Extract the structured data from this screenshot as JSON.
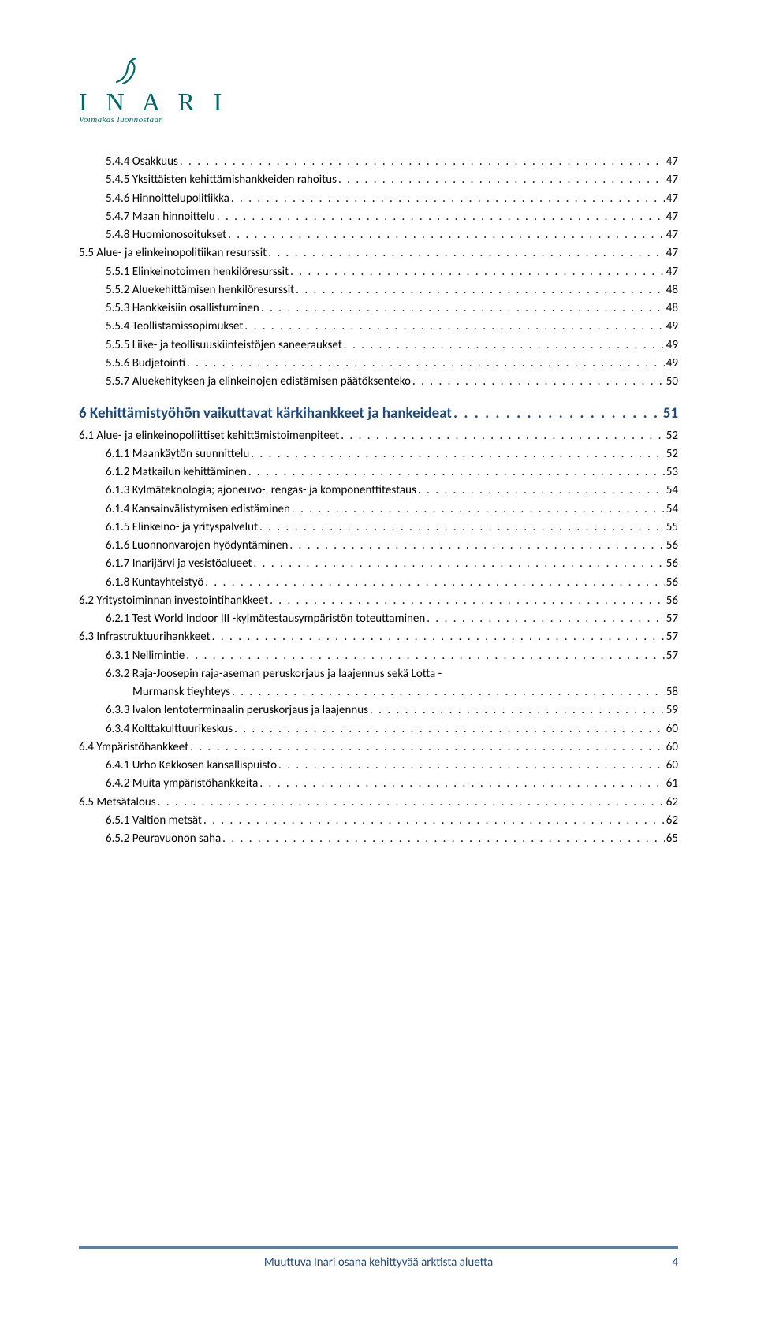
{
  "logo": {
    "word": "I N A R I",
    "tagline": "Voimakas luonnostaan",
    "color": "#006666"
  },
  "toc": [
    {
      "lvl": "lvl-3",
      "label": "5.4.4 Osakkuus",
      "page": "47"
    },
    {
      "lvl": "lvl-3",
      "label": "5.4.5 Yksittäisten kehittämishankkeiden rahoitus",
      "page": "47"
    },
    {
      "lvl": "lvl-3",
      "label": "5.4.6 Hinnoittelupolitiikka",
      "page": "47"
    },
    {
      "lvl": "lvl-3",
      "label": "5.4.7 Maan hinnoittelu",
      "page": "47"
    },
    {
      "lvl": "lvl-3",
      "label": "5.4.8 Huomionosoitukset",
      "page": "47"
    },
    {
      "lvl": "lvl-2",
      "label": "5.5 Alue- ja elinkeinopolitiikan resurssit",
      "page": "47"
    },
    {
      "lvl": "lvl-3",
      "label": "5.5.1 Elinkeinotoimen henkilöresurssit",
      "page": "47"
    },
    {
      "lvl": "lvl-3",
      "label": "5.5.2 Aluekehittämisen henkilöresurssit",
      "page": "48"
    },
    {
      "lvl": "lvl-3",
      "label": "5.5.3 Hankkeisiin osallistuminen",
      "page": "48"
    },
    {
      "lvl": "lvl-3",
      "label": "5.5.4 Teollistamissopimukset",
      "page": "49"
    },
    {
      "lvl": "lvl-3",
      "label": "5.5.5 Liike- ja teollisuuskiinteistöjen saneeraukset",
      "page": "49"
    },
    {
      "lvl": "lvl-3",
      "label": "5.5.6 Budjetointi",
      "page": "49"
    },
    {
      "lvl": "lvl-3",
      "label": "5.5.7 Aluekehityksen ja elinkeinojen edistämisen päätöksenteko",
      "page": "50"
    },
    {
      "lvl": "lvl-1",
      "label": "6 Kehittämistyöhön vaikuttavat kärkihankkeet ja hankeideat",
      "page": "51"
    },
    {
      "lvl": "lvl-2",
      "label": "6.1 Alue- ja elinkeinopoliittiset kehittämistoimenpiteet",
      "page": "52"
    },
    {
      "lvl": "lvl-3",
      "label": "6.1.1 Maankäytön suunnittelu",
      "page": "52"
    },
    {
      "lvl": "lvl-3",
      "label": "6.1.2 Matkailun kehittäminen",
      "page": "53"
    },
    {
      "lvl": "lvl-3",
      "label": "6.1.3 Kylmäteknologia; ajoneuvo-, rengas- ja komponenttitestaus",
      "page": "54"
    },
    {
      "lvl": "lvl-3",
      "label": "6.1.4 Kansainvälistymisen edistäminen",
      "page": "54"
    },
    {
      "lvl": "lvl-3",
      "label": "6.1.5 Elinkeino- ja yrityspalvelut",
      "page": "55"
    },
    {
      "lvl": "lvl-3",
      "label": "6.1.6 Luonnonvarojen hyödyntäminen",
      "page": "56"
    },
    {
      "lvl": "lvl-3",
      "label": "6.1.7 Inarijärvi ja vesistöalueet",
      "page": "56"
    },
    {
      "lvl": "lvl-3",
      "label": "6.1.8 Kuntayhteistyö",
      "page": "56"
    },
    {
      "lvl": "lvl-2",
      "label": "6.2 Yritystoiminnan investointihankkeet",
      "page": "56"
    },
    {
      "lvl": "lvl-3",
      "label": "6.2.1 Test World Indoor III -kylmätestausympäristön toteuttaminen",
      "page": "57"
    },
    {
      "lvl": "lvl-2",
      "label": "6.3 Infrastruktuurihankkeet",
      "page": "57"
    },
    {
      "lvl": "lvl-3",
      "label": "6.3.1 Nellimintie",
      "page": "57"
    },
    {
      "lvl": "lvl-3",
      "label": "6.3.2 Raja-Joosepin raja-aseman peruskorjaus ja laajennus sekä Lotta -",
      "wrap": "Murmansk tieyhteys",
      "page": "58"
    },
    {
      "lvl": "lvl-3",
      "label": "6.3.3 Ivalon lentoterminaalin peruskorjaus ja laajennus",
      "page": "59"
    },
    {
      "lvl": "lvl-3",
      "label": "6.3.4 Kolttakulttuurikeskus",
      "page": "60"
    },
    {
      "lvl": "lvl-2",
      "label": "6.4 Ympäristöhankkeet",
      "page": "60"
    },
    {
      "lvl": "lvl-3",
      "label": "6.4.1 Urho Kekkosen kansallispuisto",
      "page": "60"
    },
    {
      "lvl": "lvl-3",
      "label": "6.4.2 Muita ympäristöhankkeita",
      "page": "61"
    },
    {
      "lvl": "lvl-2",
      "label": "6.5 Metsätalous",
      "page": "62"
    },
    {
      "lvl": "lvl-3",
      "label": "6.5.1 Valtion metsät",
      "page": "62"
    },
    {
      "lvl": "lvl-3",
      "label": "6.5.2 Peuravuonon saha",
      "page": "65"
    }
  ],
  "footer": {
    "text": "Muuttuva Inari osana kehittyvää arktista aluetta",
    "pagenum": "4",
    "line_color": "#4f81bd",
    "text_color": "#1f497d"
  },
  "heading_color": "#1f497d",
  "body_color": "#000000",
  "background": "#ffffff",
  "leader": ". . . . . . . . . . . . . . . . . . . . . . . . . . . . . . . . . . . . . . . . . . . . . . . . . . . . . . . . . . . . . . . . . . . . . . . . . . . . . . . . . . . . . . . . . . . . . . . . . . . . . . . . . . . . . . . . . . . . . . . . . . . . . . . . . . . . . . . . . . . ."
}
